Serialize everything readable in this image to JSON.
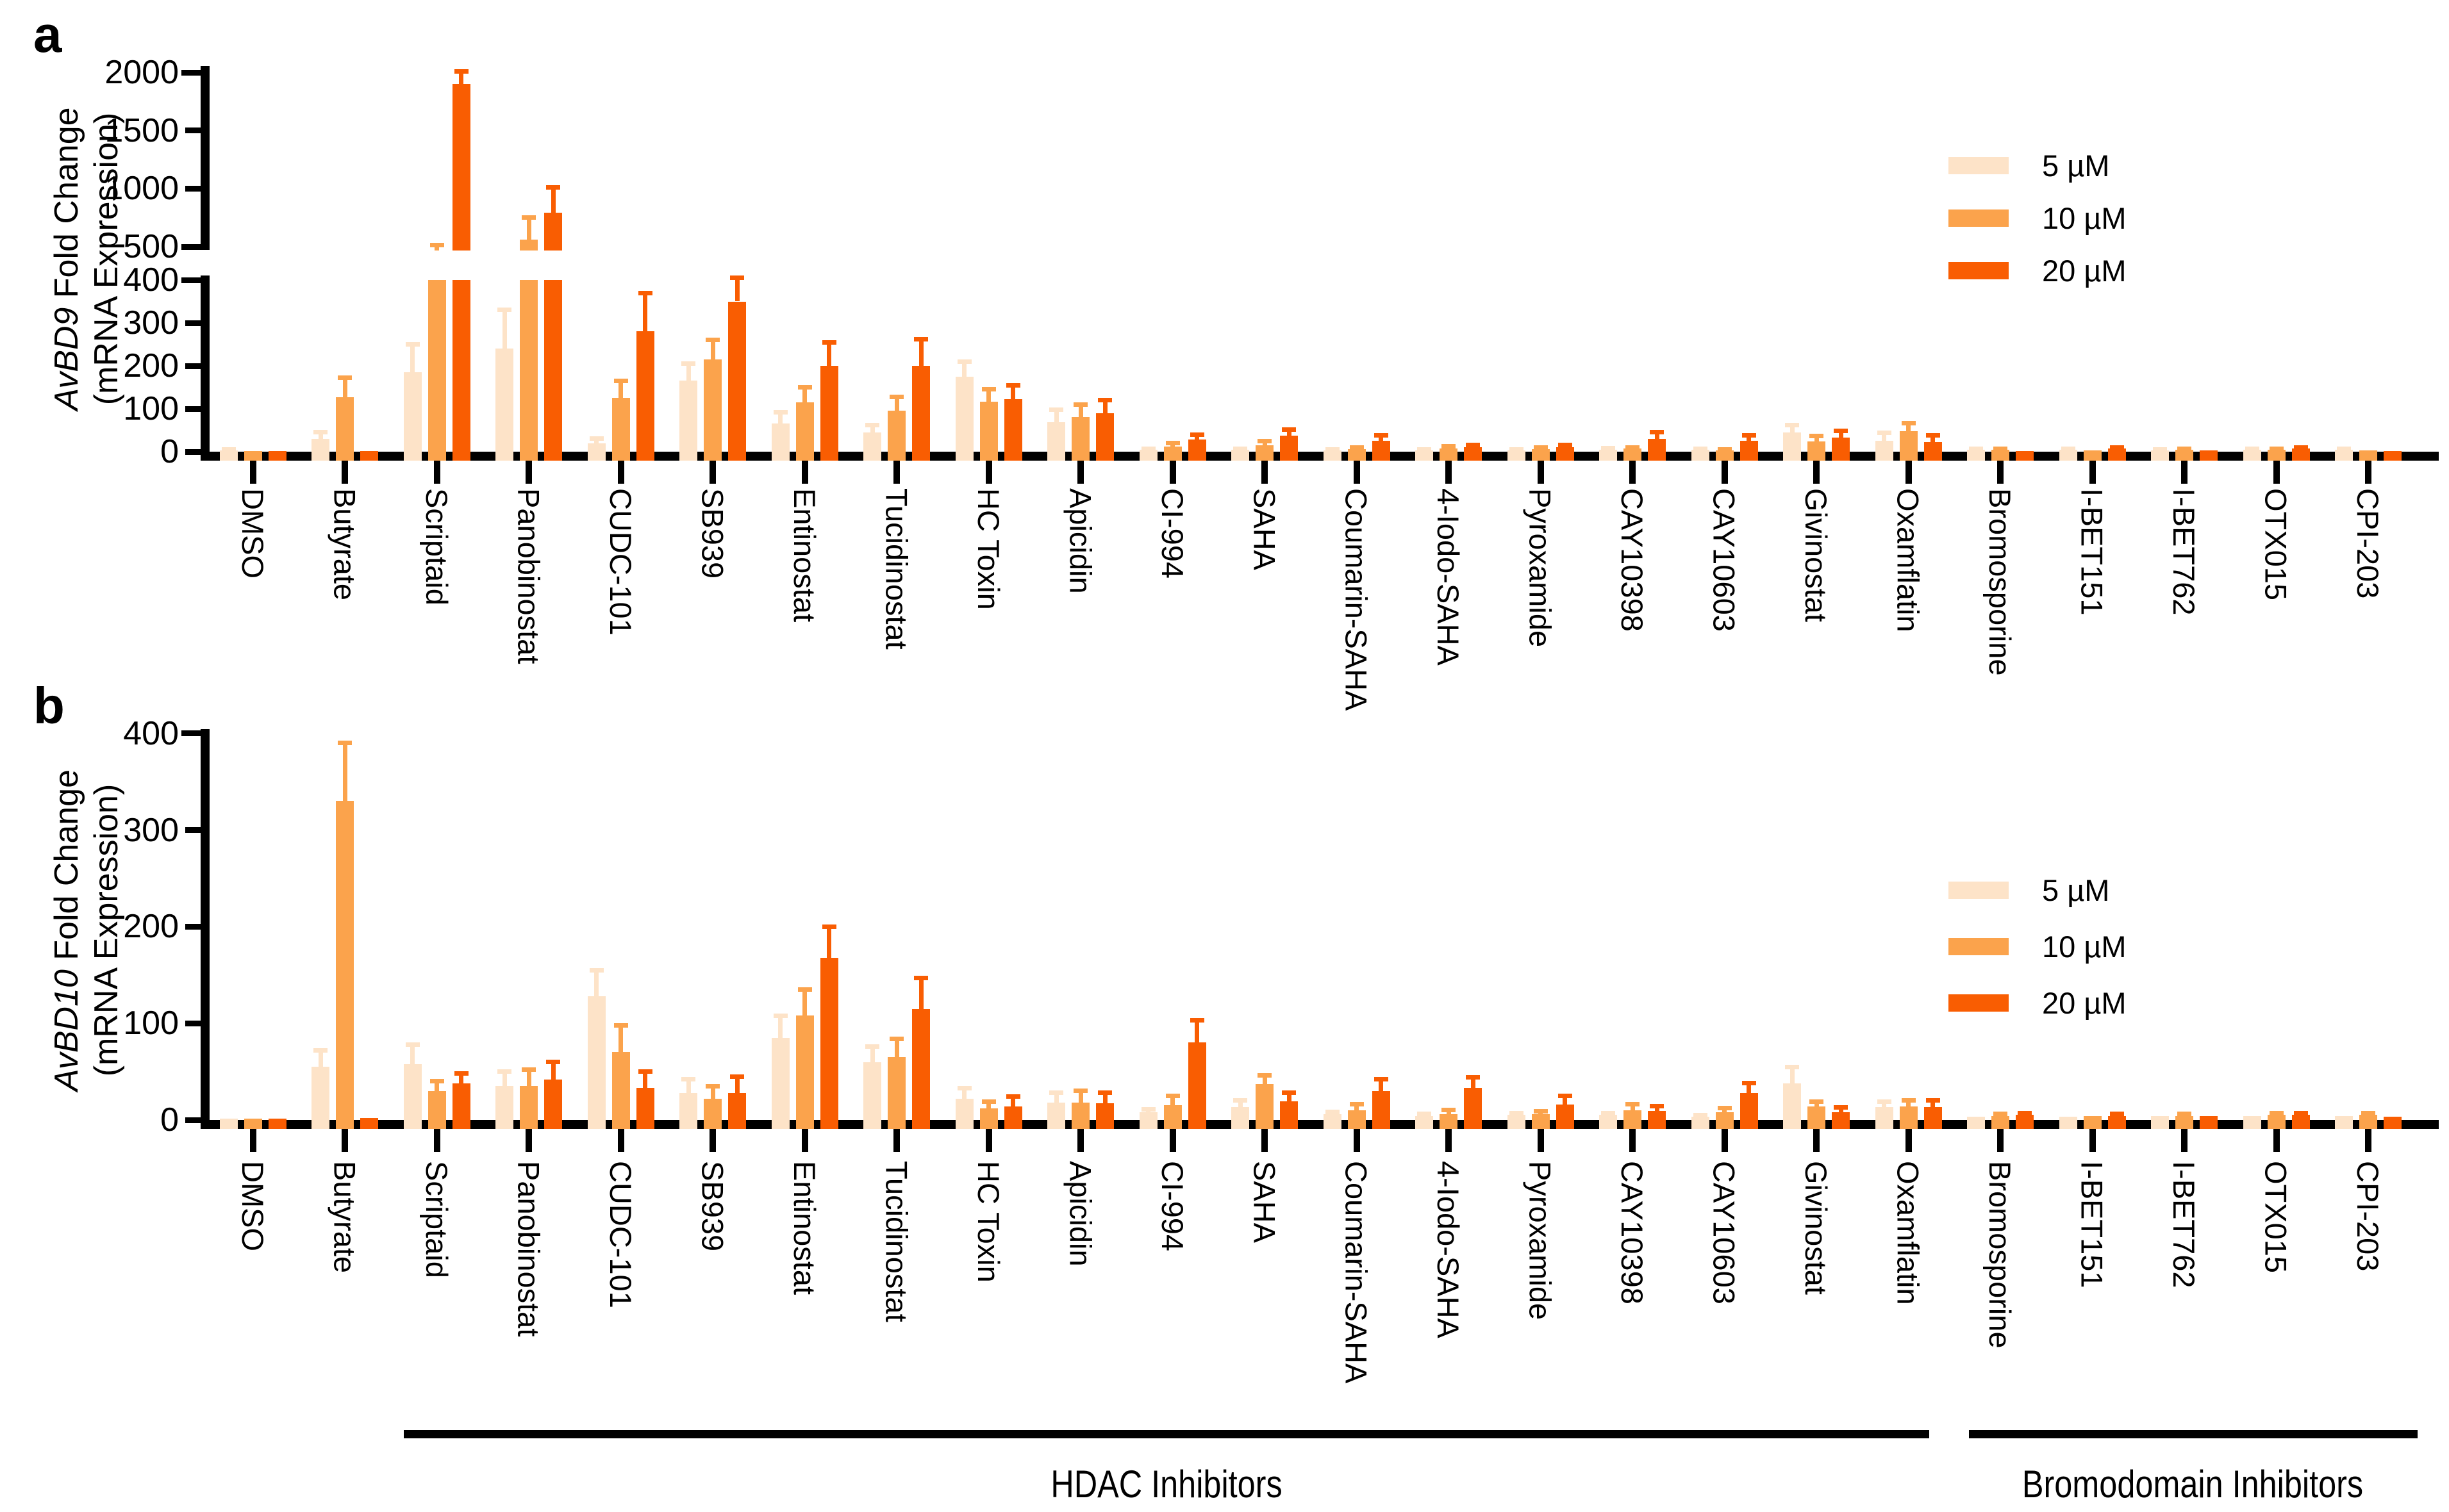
{
  "panel_labels": {
    "a": "a",
    "b": "b"
  },
  "legend": {
    "items": [
      {
        "label": "5 µM",
        "color": "#FDE3C8"
      },
      {
        "label": "10 µM",
        "color": "#FBA34C"
      },
      {
        "label": "20 µM",
        "color": "#F95D02"
      }
    ]
  },
  "captions": {
    "hdac": "HDAC Inhibitors",
    "bromodomain": "Bromodomain Inhibitors"
  },
  "chart_data": [
    {
      "panel": "a",
      "type": "bar",
      "ylabel_italic": "AvBD9",
      "ylabel_rest": " Fold Change",
      "ylabel_line2": "(mRNA Expression)",
      "y_axis": {
        "break": true,
        "lower_ticks": [
          0,
          100,
          200,
          300,
          400
        ],
        "upper_ticks": [
          500,
          1000,
          1500,
          2000
        ],
        "ylim_lower": [
          0,
          400
        ],
        "ylim_upper": [
          500,
          2000
        ]
      },
      "categories": [
        "DMSO",
        "Butyrate",
        "Scriptaid",
        "Panobinostat",
        "CUDC-101",
        "SB939",
        "Entinostat",
        "Tucidinostat",
        "HC Toxin",
        "Apicidin",
        "CI-994",
        "SAHA",
        "Coumarin-SAHA",
        "4-Iodo-SAHA",
        "Pyroxamide",
        "CAY10398",
        "CAY10603",
        "Givinostat",
        "Oxamflatin",
        "Bromosporine",
        "I-BET151",
        "I-BET762",
        "OTX015",
        "CPI-203"
      ],
      "series": [
        {
          "name": "5 µM",
          "values": [
            3,
            30,
            185,
            240,
            20,
            165,
            65,
            45,
            175,
            68,
            5,
            4,
            3,
            3,
            3,
            5,
            4,
            45,
            26,
            5,
            4,
            3,
            5,
            5
          ],
          "err_top": [
            5,
            45,
            250,
            330,
            30,
            205,
            92,
            62,
            210,
            98,
            7,
            6,
            5,
            5,
            5,
            8,
            6,
            62,
            44,
            7,
            6,
            5,
            7,
            7
          ]
        },
        {
          "name": "10 µM",
          "values": [
            1,
            127,
            460,
            560,
            125,
            215,
            115,
            95,
            117,
            80,
            12,
            15,
            6,
            8,
            6,
            7,
            3,
            24,
            48,
            5,
            3,
            5,
            5,
            3
          ],
          "err_top": [
            1,
            172,
            515,
            750,
            165,
            260,
            150,
            128,
            146,
            110,
            20,
            25,
            9,
            12,
            9,
            10,
            5,
            36,
            66,
            7,
            4,
            7,
            7,
            4
          ]
        },
        {
          "name": "20 µM",
          "values": [
            1,
            2,
            1900,
            790,
            280,
            350,
            200,
            200,
            122,
            90,
            28,
            38,
            25,
            10,
            10,
            30,
            25,
            33,
            23,
            2,
            7,
            3,
            7,
            2
          ],
          "err_top": [
            1,
            3,
            2010,
            1010,
            370,
            410,
            255,
            262,
            155,
            120,
            40,
            52,
            38,
            15,
            15,
            45,
            38,
            48,
            38,
            3,
            10,
            4,
            10,
            3
          ]
        }
      ]
    },
    {
      "panel": "b",
      "type": "bar",
      "ylabel_italic": "AvBD10",
      "ylabel_rest": " Fold Change",
      "ylabel_line2": "(mRNA Expression)",
      "y_axis": {
        "break": false,
        "lower_ticks": [
          0,
          100,
          200,
          300,
          400
        ],
        "upper_ticks": [],
        "ylim_lower": [
          0,
          400
        ]
      },
      "categories": [
        "DMSO",
        "Butyrate",
        "Scriptaid",
        "Panobinostat",
        "CUDC-101",
        "SB939",
        "Entinostat",
        "Tucidinostat",
        "HC Toxin",
        "Apicidin",
        "CI-994",
        "SAHA",
        "Coumarin-SAHA",
        "4-Iodo-SAHA",
        "Pyroxamide",
        "CAY10398",
        "CAY10603",
        "Givinostat",
        "Oxamflatin",
        "Bromosporine",
        "I-BET151",
        "I-BET762",
        "OTX015",
        "CPI-203"
      ],
      "series": [
        {
          "name": "5 µM",
          "values": [
            1,
            55,
            58,
            35,
            128,
            28,
            85,
            60,
            22,
            18,
            8,
            13,
            6,
            4,
            5,
            5,
            3,
            38,
            13,
            3,
            3,
            4,
            4,
            4
          ],
          "err_top": [
            2,
            72,
            78,
            50,
            155,
            42,
            108,
            76,
            33,
            28,
            11,
            20,
            8,
            6,
            7,
            7,
            5,
            55,
            19,
            4,
            4,
            5,
            5,
            5
          ]
        },
        {
          "name": "10 µM",
          "values": [
            1,
            330,
            30,
            35,
            70,
            22,
            108,
            65,
            12,
            18,
            15,
            37,
            10,
            6,
            6,
            10,
            8,
            14,
            14,
            4,
            4,
            4,
            5,
            5
          ],
          "err_top": [
            2,
            390,
            40,
            52,
            98,
            35,
            135,
            84,
            19,
            30,
            25,
            46,
            16,
            10,
            9,
            16,
            12,
            19,
            20,
            6,
            5,
            6,
            7,
            7
          ]
        },
        {
          "name": "20 µM",
          "values": [
            1,
            2,
            38,
            42,
            33,
            28,
            168,
            115,
            14,
            17,
            80,
            19,
            30,
            33,
            16,
            9,
            28,
            8,
            13,
            5,
            4,
            4,
            5,
            3
          ],
          "err_top": [
            2,
            3,
            48,
            60,
            50,
            45,
            200,
            147,
            24,
            28,
            103,
            28,
            42,
            44,
            25,
            14,
            38,
            13,
            20,
            7,
            6,
            5,
            7,
            4
          ]
        }
      ]
    }
  ]
}
